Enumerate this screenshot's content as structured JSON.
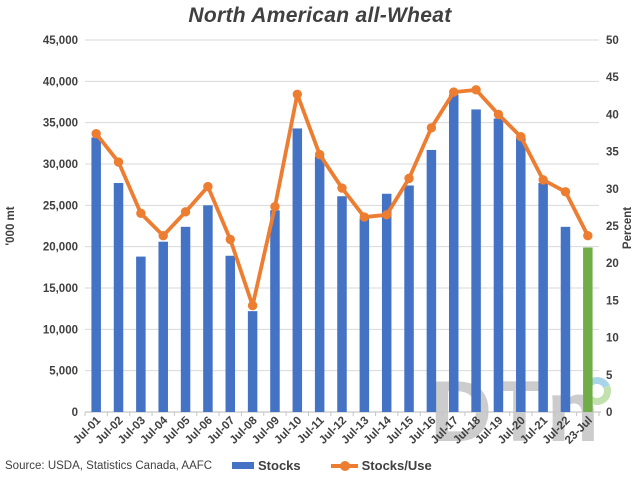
{
  "title": "North American all-Wheat",
  "source": "Source: USDA, Statistics Canada, AAFC",
  "legend": {
    "stocks_label": "Stocks",
    "stocks_use_label": "Stocks/Use"
  },
  "watermark": {
    "text": "DTn",
    "letters_color": "#cccccc",
    "ring_top_color": "#a9d5ea",
    "ring_bottom_color": "#c3e1af"
  },
  "colors": {
    "bar_blue": "#4472C4",
    "bar_green": "#70AD47",
    "line_orange": "#ED7D31",
    "grid": "#D9D9D9",
    "axis_line": "#C6C6C6",
    "text": "#404040"
  },
  "chart_data": {
    "type": "bar",
    "subtype": "bar+line-combo",
    "grid": true,
    "legend_position": "bottom",
    "categories": [
      "Jul-01",
      "Jul-02",
      "Jul-03",
      "Jul-04",
      "Jul-05",
      "Jul-06",
      "Jul-07",
      "Jul-08",
      "Jul-09",
      "Jul-10",
      "Jul-11",
      "Jul-12",
      "Jul-13",
      "Jul-14",
      "Jul-15",
      "Jul-16",
      "Jul-17",
      "Jul-18",
      "Jul-19",
      "Jul-20",
      "Jul-21",
      "Jul-22",
      "23-Jul"
    ],
    "series": [
      {
        "name": "Stocks",
        "type": "bar",
        "axis": "left",
        "color": "#4472C4",
        "highlight_last_color": "#70AD47",
        "values": [
          33200,
          27700,
          18800,
          20600,
          22400,
          25000,
          18900,
          12200,
          24400,
          34300,
          30900,
          26100,
          23400,
          26400,
          27400,
          31700,
          38400,
          36600,
          35500,
          33200,
          27700,
          22400,
          19900
        ]
      },
      {
        "name": "Stocks/Use",
        "type": "line",
        "axis": "right",
        "color": "#ED7D31",
        "values": [
          37.4,
          33.6,
          26.7,
          23.7,
          26.9,
          30.3,
          23.2,
          14.3,
          27.6,
          42.7,
          34.6,
          30.1,
          26.2,
          26.5,
          31.4,
          38.2,
          43.0,
          43.3,
          40.0,
          37.0,
          31.2,
          29.6,
          23.7
        ]
      }
    ],
    "left_axis": {
      "title": "'000 mt",
      "min": 0,
      "max": 45000,
      "step": 5000,
      "tick_labels": [
        "0",
        "5,000",
        "10,000",
        "15,000",
        "20,000",
        "25,000",
        "30,000",
        "35,000",
        "40,000",
        "45,000"
      ]
    },
    "right_axis": {
      "title": "Percent",
      "min": 0,
      "max": 50,
      "step": 5,
      "tick_labels": [
        "0",
        "5",
        "10",
        "15",
        "20",
        "25",
        "30",
        "35",
        "40",
        "45",
        "50"
      ]
    }
  }
}
